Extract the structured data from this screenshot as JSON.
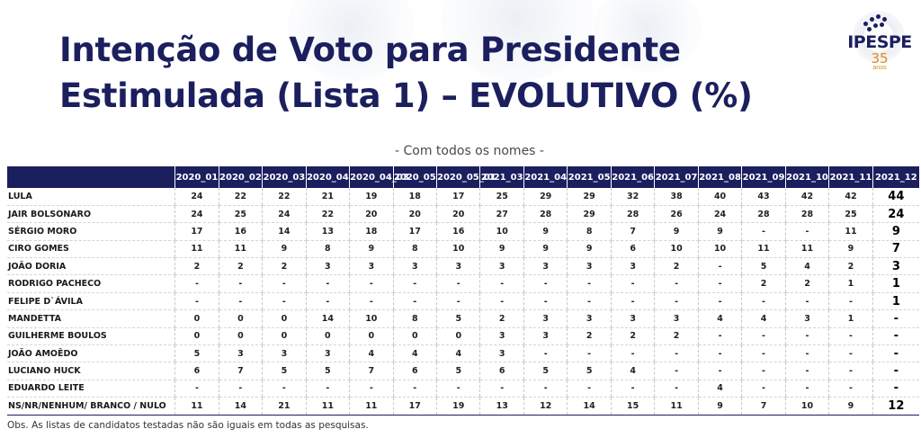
{
  "header": {
    "title_line1": "Intenção de Voto para Presidente",
    "title_line2": "Estimulada (Lista 1) – EVOLUTIVO (%)",
    "subtitle": "- Com todos os nomes -"
  },
  "logo": {
    "name": "IPESPE",
    "years": "35",
    "anos": "anos"
  },
  "table": {
    "columns": [
      "2020_01",
      "2020_02",
      "2020_03",
      "2020_04",
      "2020_04_03",
      "2020_05",
      "2020_05_01",
      "2021_03",
      "2021_04",
      "2021_05",
      "2021_06",
      "2021_07",
      "2021_08",
      "2021_09",
      "2021_10",
      "2021_11",
      "2021_12"
    ],
    "rows": [
      {
        "name": "LULA",
        "values": [
          "24",
          "22",
          "22",
          "21",
          "19",
          "18",
          "17",
          "25",
          "29",
          "29",
          "32",
          "38",
          "40",
          "43",
          "42",
          "42",
          "44"
        ]
      },
      {
        "name": "JAIR BOLSONARO",
        "values": [
          "24",
          "25",
          "24",
          "22",
          "20",
          "20",
          "20",
          "27",
          "28",
          "29",
          "28",
          "26",
          "24",
          "28",
          "28",
          "25",
          "24"
        ]
      },
      {
        "name": "SÉRGIO MORO",
        "values": [
          "17",
          "16",
          "14",
          "13",
          "18",
          "17",
          "16",
          "10",
          "9",
          "8",
          "7",
          "9",
          "9",
          "-",
          "-",
          "11",
          "9"
        ]
      },
      {
        "name": "CIRO GOMES",
        "values": [
          "11",
          "11",
          "9",
          "8",
          "9",
          "8",
          "10",
          "9",
          "9",
          "9",
          "6",
          "10",
          "10",
          "11",
          "11",
          "9",
          "7"
        ]
      },
      {
        "name": "JOÃO DORIA",
        "values": [
          "2",
          "2",
          "2",
          "3",
          "3",
          "3",
          "3",
          "3",
          "3",
          "3",
          "3",
          "2",
          "-",
          "5",
          "4",
          "2",
          "3"
        ]
      },
      {
        "name": "RODRIGO PACHECO",
        "values": [
          "-",
          "-",
          "-",
          "-",
          "-",
          "-",
          "-",
          "-",
          "-",
          "-",
          "-",
          "-",
          "-",
          "2",
          "2",
          "1",
          "1"
        ]
      },
      {
        "name": "FELIPE D`ÁVILA",
        "values": [
          "-",
          "-",
          "-",
          "-",
          "-",
          "-",
          "-",
          "-",
          "-",
          "-",
          "-",
          "-",
          "-",
          "-",
          "-",
          "-",
          "1"
        ]
      },
      {
        "name": "MANDETTA",
        "values": [
          "0",
          "0",
          "0",
          "14",
          "10",
          "8",
          "5",
          "2",
          "3",
          "3",
          "3",
          "3",
          "4",
          "4",
          "3",
          "1",
          "-"
        ]
      },
      {
        "name": "GUILHERME BOULOS",
        "values": [
          "0",
          "0",
          "0",
          "0",
          "0",
          "0",
          "0",
          "3",
          "3",
          "2",
          "2",
          "2",
          "-",
          "-",
          "-",
          "-",
          "-"
        ]
      },
      {
        "name": "JOÃO AMOÊDO",
        "values": [
          "5",
          "3",
          "3",
          "3",
          "4",
          "4",
          "4",
          "3",
          "-",
          "-",
          "-",
          "-",
          "-",
          "-",
          "-",
          "-",
          "-"
        ]
      },
      {
        "name": "LUCIANO HUCK",
        "values": [
          "6",
          "7",
          "5",
          "5",
          "7",
          "6",
          "5",
          "6",
          "5",
          "5",
          "4",
          "-",
          "-",
          "-",
          "-",
          "-",
          "-"
        ]
      },
      {
        "name": "EDUARDO LEITE",
        "values": [
          "-",
          "-",
          "-",
          "-",
          "-",
          "-",
          "-",
          "-",
          "-",
          "-",
          "-",
          "-",
          "4",
          "-",
          "-",
          "-",
          "-"
        ]
      },
      {
        "name": "NS/NR/NENHUM/ BRANCO / NULO",
        "values": [
          "11",
          "14",
          "21",
          "11",
          "11",
          "17",
          "19",
          "13",
          "12",
          "14",
          "15",
          "11",
          "9",
          "7",
          "10",
          "9",
          "12"
        ]
      }
    ]
  },
  "footnote": "Obs. As listas de candidatos testadas não são iguais em todas as pesquisas.",
  "colors": {
    "header_bg": "#1b1f5e",
    "title": "#1b1f5e",
    "logo_accent": "#e08a1e"
  }
}
